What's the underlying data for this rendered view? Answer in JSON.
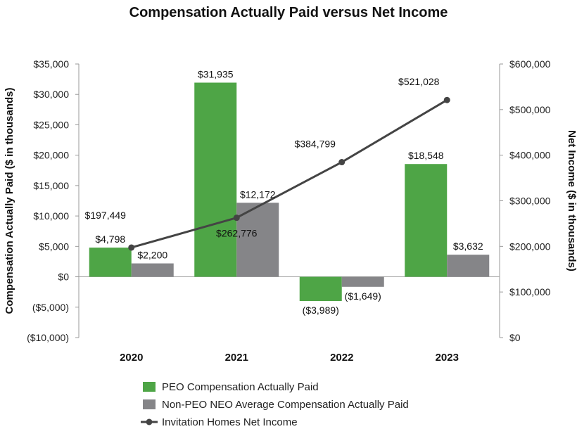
{
  "chart_data": {
    "type": "bar",
    "title": "Compensation Actually Paid versus Net Income",
    "categories": [
      "2020",
      "2021",
      "2022",
      "2023"
    ],
    "ylabel": "Compensation Actually Paid ($ in thousands)",
    "y2label": "Net Income ($ in thousands)",
    "ylim": [
      -10000,
      35000
    ],
    "y2lim": [
      0,
      600000
    ],
    "yticks": [
      35000,
      30000,
      25000,
      20000,
      15000,
      10000,
      5000,
      0,
      -5000,
      -10000
    ],
    "ytick_labels": [
      "$35,000",
      "$30,000",
      "$25,000",
      "$20,000",
      "$15,000",
      "$10,000",
      "$5,000",
      "$0",
      "($5,000)",
      "($10,000)"
    ],
    "y2ticks": [
      600000,
      500000,
      400000,
      300000,
      200000,
      100000,
      0
    ],
    "y2tick_labels": [
      "$600,000",
      "$500,000",
      "$400,000",
      "$300,000",
      "$200,000",
      "$100,000",
      "$0"
    ],
    "series": [
      {
        "name": "PEO Compensation Actually Paid",
        "kind": "bar",
        "axis": "left",
        "color": "#4ea546",
        "values": [
          4798,
          31935,
          -3989,
          18548
        ],
        "labels": [
          "$4,798",
          "$31,935",
          "($3,989)",
          "$18,548"
        ]
      },
      {
        "name": "Non-PEO NEO Average Compensation Actually Paid",
        "kind": "bar",
        "axis": "left",
        "color": "#858588",
        "values": [
          2200,
          12172,
          -1649,
          3632
        ],
        "labels": [
          "$2,200",
          "$12,172",
          "($1,649)",
          "$3,632"
        ]
      },
      {
        "name": "Invitation Homes Net Income",
        "kind": "line",
        "axis": "right",
        "color": "#444444",
        "values": [
          197449,
          262776,
          384799,
          521028
        ],
        "labels": [
          "$197,449",
          "$262,776",
          "$384,799",
          "$521,028"
        ]
      }
    ],
    "grid": false,
    "legend_position": "bottom-center"
  }
}
